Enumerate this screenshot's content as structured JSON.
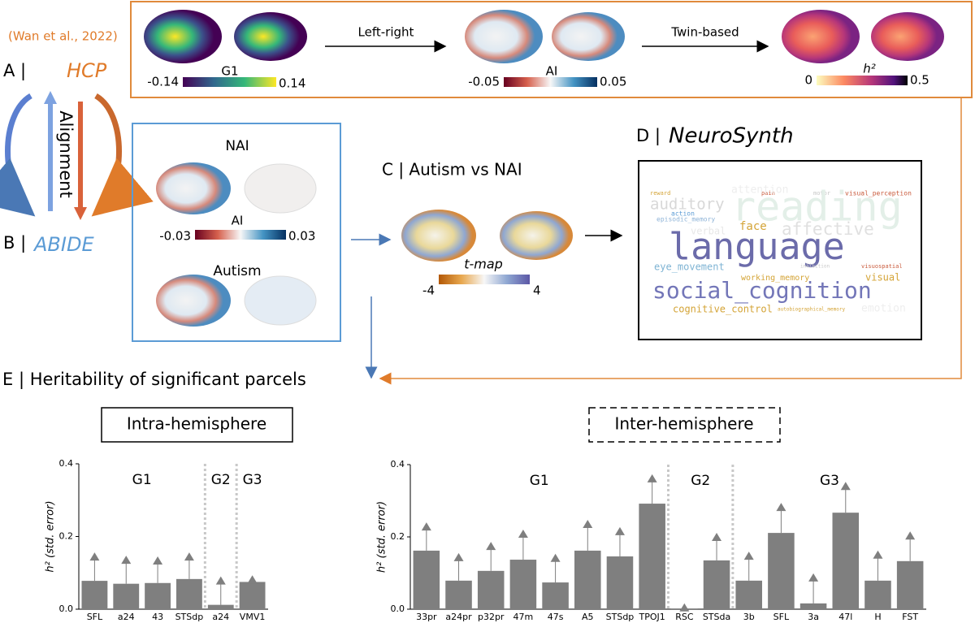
{
  "citation": "(Wan et al., 2022)",
  "panel_a": {
    "label": "A |",
    "name": "HCP"
  },
  "panel_b": {
    "label": "B |",
    "name": "ABIDE"
  },
  "alignment": "Alignment",
  "hcp_maps": [
    {
      "title": "G1",
      "min": "-0.14",
      "max": "0.14"
    },
    {
      "title": "AI",
      "min": "-0.05",
      "max": "0.05"
    },
    {
      "title": "h²",
      "min": "0",
      "max": "0.5"
    }
  ],
  "arrows": [
    "Left-right",
    "Twin-based"
  ],
  "abide_maps": {
    "top": "NAI",
    "scale": {
      "title": "AI",
      "min": "-0.03",
      "max": "0.03"
    },
    "bottom": "Autism"
  },
  "panel_c": {
    "title": "C | Autism vs NAI",
    "map_label": "t-map",
    "min": "-4",
    "max": "4"
  },
  "panel_d": {
    "label": "D |",
    "name": "NeuroSynth",
    "words": [
      "reward",
      "pain",
      "motor",
      "visual_perception",
      "attention",
      "auditory",
      "reading",
      "action",
      "episodic_memory",
      "face",
      "affective",
      "verbal",
      "language",
      "eye_movement",
      "inhibition",
      "visuospatial",
      "working_memory",
      "visual",
      "social_cognition",
      "cognitive_control",
      "autobiographical_memory",
      "emotion"
    ]
  },
  "panel_e": {
    "title": "E | Heritability of significant parcels"
  },
  "chart_data": [
    {
      "type": "bar",
      "title": "Intra-hemisphere",
      "ylabel": "h² (std. error)",
      "color": "#7f7f7f",
      "categories": [
        "SFL",
        "a24",
        "43",
        "STSdp",
        "a24",
        "VMV1"
      ],
      "values": [
        0.078,
        0.07,
        0.072,
        0.083,
        0.012,
        0.075
      ],
      "errors": [
        0.067,
        0.066,
        0.062,
        0.062,
        0.067,
        0.007
      ],
      "groups": [
        {
          "name": "G1",
          "start": 0,
          "end": 3
        },
        {
          "name": "G2",
          "start": 4,
          "end": 4
        },
        {
          "name": "G3",
          "start": 5,
          "end": 5
        }
      ],
      "ylim": [
        0,
        0.4
      ],
      "yticks": [
        {
          "value": 0,
          "label": "0.0"
        },
        0.2,
        0.4
      ]
    },
    {
      "type": "bar",
      "title": "Inter-hemisphere",
      "ylabel": "h² (std. error)",
      "color": "#7f7f7f",
      "categories": [
        "33pr",
        "a24pr",
        "p32pr",
        "47m",
        "47s",
        "A5",
        "STSdp",
        "TPOJ1",
        "RSC",
        "STSda",
        "3b",
        "SFL",
        "3a",
        "47l",
        "H",
        "FST"
      ],
      "values": [
        0.162,
        0.079,
        0.106,
        0.137,
        0.074,
        0.162,
        0.146,
        0.292,
        0.002,
        0.135,
        0.079,
        0.211,
        0.016,
        0.267,
        0.079,
        0.133
      ],
      "errors": [
        0.067,
        0.065,
        0.069,
        0.072,
        0.068,
        0.074,
        0.07,
        0.07,
        0.003,
        0.065,
        0.069,
        0.072,
        0.072,
        0.074,
        0.072,
        0.071
      ],
      "groups": [
        {
          "name": "G1",
          "start": 0,
          "end": 7
        },
        {
          "name": "G2",
          "start": 8,
          "end": 9
        },
        {
          "name": "G3",
          "start": 10,
          "end": 15
        }
      ],
      "ylim": [
        0,
        0.4
      ],
      "yticks": [
        {
          "value": 0,
          "label": "0.0"
        },
        0.2,
        0.4
      ]
    }
  ]
}
